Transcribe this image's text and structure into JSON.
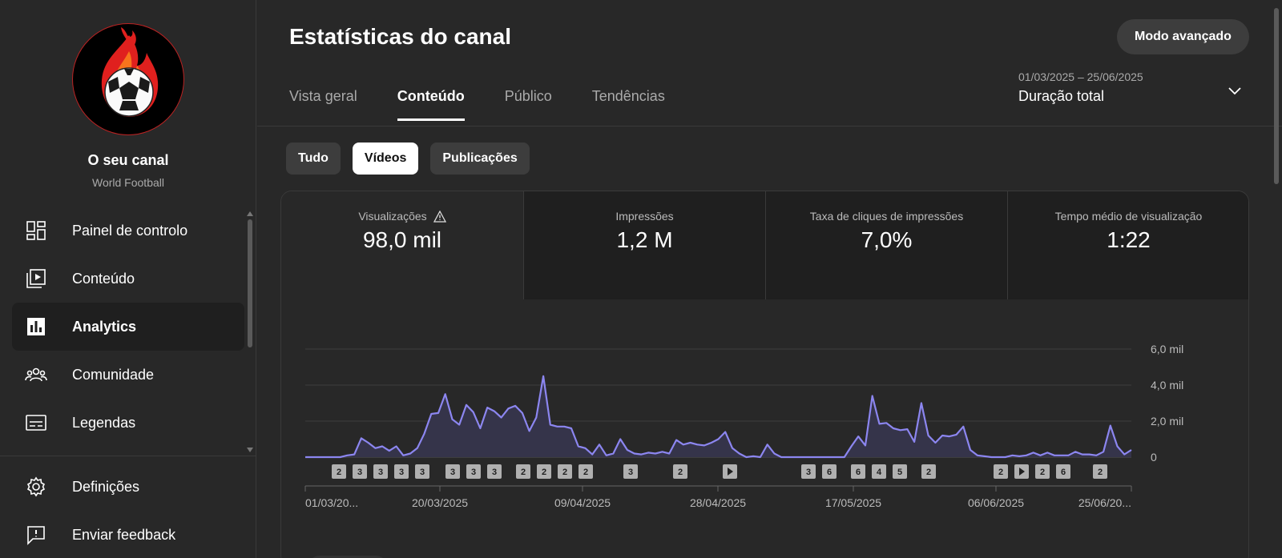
{
  "sidebar": {
    "channel_name": "O seu canal",
    "channel_sub": "World Football",
    "items": [
      {
        "label": "Painel de controlo",
        "icon": "dashboard-icon",
        "active": false
      },
      {
        "label": "Conteúdo",
        "icon": "content-icon",
        "active": false
      },
      {
        "label": "Analytics",
        "icon": "analytics-icon",
        "active": true
      },
      {
        "label": "Comunidade",
        "icon": "community-icon",
        "active": false
      },
      {
        "label": "Legendas",
        "icon": "subtitles-icon",
        "active": false
      }
    ],
    "bottom_items": [
      {
        "label": "Definições",
        "icon": "gear-icon"
      },
      {
        "label": "Enviar feedback",
        "icon": "feedback-icon"
      }
    ]
  },
  "header": {
    "title": "Estatísticas do canal",
    "advanced_label": "Modo avançado",
    "date_range": "01/03/2025 – 25/06/2025",
    "date_label": "Duração total"
  },
  "tabs": [
    {
      "label": "Vista geral",
      "active": false
    },
    {
      "label": "Conteúdo",
      "active": true
    },
    {
      "label": "Público",
      "active": false
    },
    {
      "label": "Tendências",
      "active": false
    }
  ],
  "chips": [
    {
      "label": "Tudo",
      "active": false
    },
    {
      "label": "Vídeos",
      "active": true
    },
    {
      "label": "Publicações",
      "active": false
    }
  ],
  "metrics": [
    {
      "label": "Visualizações",
      "value": "98,0 mil",
      "warning": true
    },
    {
      "label": "Impressões",
      "value": "1,2 M",
      "warning": false
    },
    {
      "label": "Taxa de cliques de impressões",
      "value": "7,0%",
      "warning": false
    },
    {
      "label": "Tempo médio de visualização",
      "value": "1:22",
      "warning": false
    }
  ],
  "chart_data": {
    "type": "area",
    "series": [
      {
        "values": [
          0,
          0,
          0,
          0,
          0,
          0,
          0.1,
          0.15,
          1.05,
          0.8,
          0.5,
          0.6,
          0.35,
          0.6,
          0.1,
          0.2,
          0.5,
          1.3,
          2.4,
          2.45,
          3.5,
          2.1,
          1.8,
          2.9,
          2.5,
          1.6,
          2.75,
          2.55,
          2.2,
          2.7,
          2.85,
          2.45,
          1.45,
          2.2,
          4.5,
          1.8,
          1.7,
          1.7,
          1.6,
          0.6,
          0.5,
          0.15,
          0.7,
          0.1,
          0.2,
          1.0,
          0.4,
          0.2,
          0.15,
          0.25,
          0.2,
          0.3,
          0.2,
          0.95,
          0.7,
          0.8,
          0.7,
          0.65,
          0.8,
          1.0,
          1.4,
          0.5,
          0.2,
          0,
          0.05,
          0,
          0.7,
          0.2,
          0,
          0,
          0,
          0,
          0,
          0,
          0,
          0,
          0,
          0,
          0.6,
          1.15,
          0.65,
          3.4,
          1.85,
          1.9,
          1.6,
          1.5,
          1.55,
          0.85,
          3.0,
          1.2,
          0.8,
          1.2,
          1.15,
          1.25,
          1.7,
          0.4,
          0.1,
          0.05,
          0,
          0,
          0,
          0.1,
          0.05,
          0.1,
          0.25,
          0.1,
          0.25,
          0.1,
          0.1,
          0.1,
          0.3,
          0.15,
          0.15,
          0.1,
          0.3,
          1.75,
          0.6,
          0.15,
          0.4
        ]
      }
    ],
    "x_tick_labels": [
      "01/03/20...",
      "20/03/2025",
      "09/04/2025",
      "28/04/2025",
      "17/05/2025",
      "06/06/2025",
      "25/06/20..."
    ],
    "y_tick_labels": [
      "0",
      "2,0 mil",
      "4,0 mil",
      "6,0 mil"
    ],
    "ylim": [
      0,
      6000
    ],
    "grid": true,
    "markers": [
      "2",
      "3",
      "3",
      "3",
      "3",
      "3",
      "3",
      "3",
      "2",
      "2",
      "2",
      "2",
      "3",
      "2",
      "play",
      "3",
      "6",
      "6",
      "4",
      "5",
      "2",
      "2",
      "play",
      "2",
      "6",
      "2"
    ]
  }
}
